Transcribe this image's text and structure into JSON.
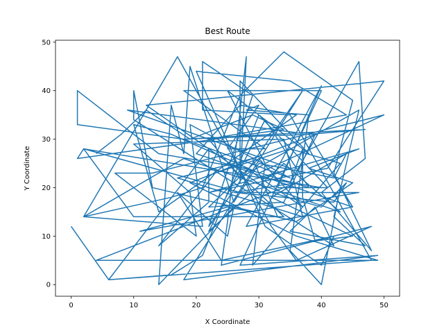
{
  "chart_data": {
    "type": "line",
    "title": "Best Route",
    "xlabel": "X Coordinate",
    "ylabel": "Y Coordinate",
    "xlim": [
      -2.5,
      52.5
    ],
    "ylim": [
      -2.4,
      50.4
    ],
    "xticks": [
      0,
      10,
      20,
      30,
      40,
      50
    ],
    "yticks": [
      0,
      10,
      20,
      30,
      40,
      50
    ],
    "grid": false,
    "series": [
      {
        "color": "#1f77b4",
        "points": [
          [
            0,
            12
          ],
          [
            6,
            1
          ],
          [
            16,
            2
          ],
          [
            21,
            6
          ],
          [
            30,
            35
          ],
          [
            41,
            20
          ],
          [
            33,
            20
          ],
          [
            40,
            41
          ],
          [
            28,
            12
          ],
          [
            45,
            16
          ],
          [
            43,
            20
          ],
          [
            40,
            0
          ],
          [
            35,
            7
          ],
          [
            38,
            35
          ],
          [
            28,
            36
          ],
          [
            30,
            37
          ],
          [
            25,
            28
          ],
          [
            31,
            28
          ],
          [
            18,
            40
          ],
          [
            40,
            40
          ],
          [
            27,
            4
          ],
          [
            49,
            6
          ],
          [
            18,
            1
          ],
          [
            37,
            40
          ],
          [
            22,
            12
          ],
          [
            29,
            39
          ],
          [
            21,
            46
          ],
          [
            21,
            36
          ],
          [
            35,
            35
          ],
          [
            48,
            5
          ],
          [
            6,
            1
          ],
          [
            22,
            28
          ],
          [
            22,
            17
          ],
          [
            14,
            8
          ],
          [
            23,
            23
          ],
          [
            35,
            28
          ],
          [
            43,
            25
          ],
          [
            29,
            4
          ],
          [
            31,
            25
          ],
          [
            25,
            40
          ],
          [
            38,
            27
          ],
          [
            27,
            42
          ],
          [
            27,
            21
          ],
          [
            28,
            47
          ],
          [
            25,
            13
          ],
          [
            24,
            4
          ],
          [
            48,
            12
          ],
          [
            36,
            5
          ],
          [
            32,
            12
          ],
          [
            17,
            47
          ],
          [
            2,
            14
          ],
          [
            16,
            18
          ],
          [
            21,
            20
          ],
          [
            27,
            39
          ],
          [
            34,
            48
          ],
          [
            45,
            38
          ],
          [
            42,
            23
          ],
          [
            48,
            7
          ],
          [
            40,
            19
          ],
          [
            47,
            26
          ],
          [
            46,
            46
          ],
          [
            35,
            21
          ],
          [
            37,
            28
          ],
          [
            37,
            18
          ],
          [
            39,
            9
          ],
          [
            45,
            10
          ],
          [
            32,
            18
          ],
          [
            44,
            27
          ],
          [
            42,
            22
          ],
          [
            30,
            25
          ],
          [
            26,
            17
          ],
          [
            19,
            45
          ],
          [
            18,
            27
          ],
          [
            16,
            37
          ],
          [
            14,
            0
          ],
          [
            26,
            16
          ],
          [
            25,
            10
          ],
          [
            17,
            19
          ],
          [
            24,
            5
          ],
          [
            42,
            10
          ],
          [
            40,
            4
          ],
          [
            31,
            12
          ],
          [
            20,
            44
          ],
          [
            35,
            42
          ],
          [
            44,
            35
          ],
          [
            22,
            30
          ],
          [
            27,
            22
          ],
          [
            46,
            36
          ],
          [
            42,
            14
          ],
          [
            47,
            8
          ],
          [
            35,
            11
          ],
          [
            39,
            16
          ],
          [
            42,
            8
          ],
          [
            10,
            34
          ],
          [
            10,
            40
          ],
          [
            13,
            20
          ],
          [
            36,
            13
          ],
          [
            45,
            21
          ],
          [
            38,
            24
          ],
          [
            46,
            28
          ],
          [
            22,
            19
          ],
          [
            41,
            24
          ],
          [
            50,
            42
          ],
          [
            12,
            37
          ],
          [
            32,
            19
          ],
          [
            40,
            16
          ],
          [
            44,
            21
          ],
          [
            42,
            17
          ],
          [
            26,
            19
          ],
          [
            36,
            21
          ],
          [
            4,
            5
          ],
          [
            49,
            5
          ],
          [
            36,
            10
          ],
          [
            19,
            21
          ],
          [
            39,
            31
          ],
          [
            34,
            17
          ],
          [
            22,
            16
          ],
          [
            30,
            26
          ],
          [
            37,
            16
          ],
          [
            28,
            24
          ],
          [
            14,
            27
          ],
          [
            1,
            40
          ],
          [
            1,
            33
          ],
          [
            18,
            30
          ],
          [
            47,
            32
          ],
          [
            38,
            31
          ],
          [
            9,
            36
          ],
          [
            35,
            24
          ],
          [
            31,
            22
          ],
          [
            40,
            20
          ],
          [
            2,
            28
          ],
          [
            27,
            19
          ],
          [
            46,
            19
          ],
          [
            11,
            11
          ],
          [
            25,
            16
          ],
          [
            33,
            14
          ],
          [
            29,
            26
          ],
          [
            17,
            22
          ],
          [
            37,
            14
          ],
          [
            34,
            30
          ],
          [
            10,
            29
          ],
          [
            19,
            19
          ],
          [
            20,
            10
          ],
          [
            7,
            23
          ],
          [
            13,
            23
          ],
          [
            50,
            35
          ],
          [
            30,
            23
          ],
          [
            16,
            31
          ],
          [
            10,
            33
          ],
          [
            14,
            15
          ],
          [
            36,
            35
          ],
          [
            27,
            37
          ],
          [
            20,
            27
          ],
          [
            45,
            16
          ],
          [
            38,
            31
          ],
          [
            18,
            30
          ],
          [
            35,
            22
          ],
          [
            19,
            33
          ],
          [
            21,
            12
          ],
          [
            2,
            14
          ],
          [
            18,
            26
          ],
          [
            43,
            15
          ],
          [
            34,
            25
          ],
          [
            22,
            11
          ],
          [
            31,
            34
          ],
          [
            38,
            20
          ],
          [
            25,
            25
          ],
          [
            34,
            14
          ],
          [
            10,
            14
          ],
          [
            2,
            28
          ],
          [
            1,
            26
          ],
          [
            34,
            32
          ],
          [
            29,
            35
          ],
          [
            19,
            30
          ],
          [
            12,
            36
          ],
          [
            8,
            31
          ],
          [
            4,
            27
          ]
        ]
      }
    ]
  }
}
